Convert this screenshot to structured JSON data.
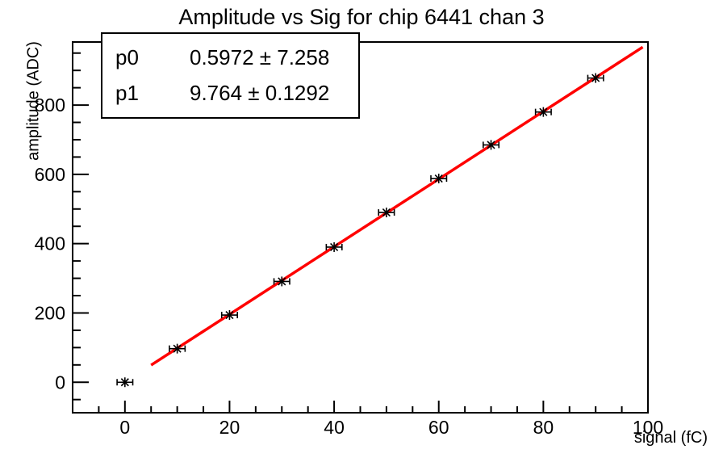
{
  "chart_data": {
    "type": "scatter",
    "title": "Amplitude vs Sig for chip 6441 chan 3",
    "xlabel": "signal (fC)",
    "ylabel": "amplitude (ADC)",
    "x": [
      0,
      10,
      20,
      30,
      40,
      50,
      60,
      70,
      80,
      90
    ],
    "y": [
      0,
      97,
      194,
      291,
      390,
      490,
      588,
      685,
      780,
      878
    ],
    "xerr": 1.5,
    "xlim": [
      -10,
      100
    ],
    "ylim": [
      -88,
      982
    ],
    "xticks": [
      0,
      20,
      40,
      60,
      80,
      100
    ],
    "yticks": [
      0,
      200,
      400,
      600,
      800
    ],
    "x_minor_step": 5,
    "y_minor_step": 50,
    "grid": false,
    "legend": "none",
    "marker": "asterisk-with-x-error-bars",
    "marker_color": "#000000",
    "fit": {
      "type": "linear",
      "p0": 0.5972,
      "p1": 9.764,
      "range": [
        5,
        99
      ],
      "color": "#ff0000"
    }
  },
  "stats_box": {
    "rows": [
      {
        "label": "p0",
        "value": "0.5972 ± 7.258"
      },
      {
        "label": "p1",
        "value": "9.764 ± 0.1292"
      }
    ]
  },
  "colors": {
    "background": "#ffffff",
    "axis": "#000000",
    "fit_line": "#ff0000",
    "text": "#000000"
  }
}
